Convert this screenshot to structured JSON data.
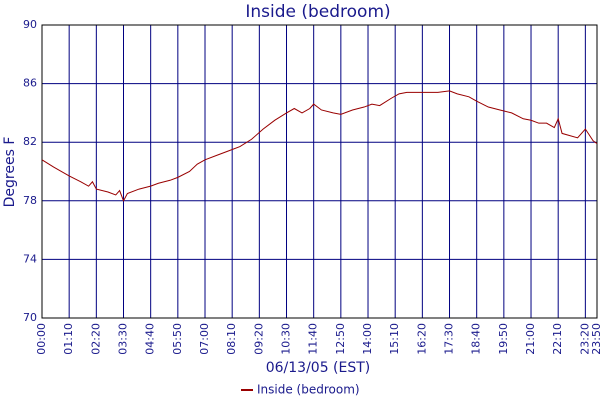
{
  "chart_data": {
    "type": "line",
    "title": "Inside (bedroom)",
    "x_label": "06/13/05 (EST)",
    "y_label": "Degrees F",
    "xlim": [
      0,
      1430
    ],
    "ylim": [
      70,
      90
    ],
    "xticks": [
      {
        "value": 0,
        "label": "00:00"
      },
      {
        "value": 70,
        "label": "01:10"
      },
      {
        "value": 140,
        "label": "02:20"
      },
      {
        "value": 210,
        "label": "03:30"
      },
      {
        "value": 280,
        "label": "04:40"
      },
      {
        "value": 350,
        "label": "05:50"
      },
      {
        "value": 420,
        "label": "07:00"
      },
      {
        "value": 490,
        "label": "08:10"
      },
      {
        "value": 560,
        "label": "09:20"
      },
      {
        "value": 630,
        "label": "10:30"
      },
      {
        "value": 700,
        "label": "11:40"
      },
      {
        "value": 770,
        "label": "12:50"
      },
      {
        "value": 840,
        "label": "14:00"
      },
      {
        "value": 910,
        "label": "15:10"
      },
      {
        "value": 980,
        "label": "16:20"
      },
      {
        "value": 1050,
        "label": "17:30"
      },
      {
        "value": 1120,
        "label": "18:40"
      },
      {
        "value": 1190,
        "label": "19:50"
      },
      {
        "value": 1260,
        "label": "21:00"
      },
      {
        "value": 1330,
        "label": "22:10"
      },
      {
        "value": 1400,
        "label": "23:20"
      },
      {
        "value": 1430,
        "label": "23:50"
      }
    ],
    "yticks": [
      70,
      74,
      78,
      82,
      86,
      90
    ],
    "grid": true,
    "x": [
      0,
      30,
      70,
      100,
      120,
      130,
      140,
      170,
      190,
      200,
      210,
      220,
      250,
      280,
      300,
      330,
      350,
      380,
      400,
      420,
      450,
      480,
      510,
      540,
      570,
      600,
      630,
      650,
      670,
      690,
      700,
      720,
      750,
      770,
      800,
      830,
      850,
      870,
      900,
      920,
      940,
      960,
      990,
      1020,
      1050,
      1070,
      1100,
      1120,
      1150,
      1180,
      1210,
      1240,
      1260,
      1280,
      1300,
      1320,
      1330,
      1340,
      1380,
      1400,
      1420,
      1430
    ],
    "series": [
      {
        "name": "Inside (bedroom)",
        "color": "#990000",
        "values": [
          80.8,
          80.3,
          79.7,
          79.3,
          79.0,
          79.3,
          78.8,
          78.6,
          78.4,
          78.7,
          78.0,
          78.5,
          78.8,
          79.0,
          79.2,
          79.4,
          79.6,
          80.0,
          80.5,
          80.8,
          81.1,
          81.4,
          81.7,
          82.2,
          82.9,
          83.5,
          84.0,
          84.3,
          84.0,
          84.3,
          84.6,
          84.2,
          84.0,
          83.9,
          84.2,
          84.4,
          84.6,
          84.5,
          85.0,
          85.3,
          85.4,
          85.4,
          85.4,
          85.4,
          85.5,
          85.3,
          85.1,
          84.8,
          84.4,
          84.2,
          84.0,
          83.6,
          83.5,
          83.3,
          83.3,
          83.0,
          83.6,
          82.6,
          82.3,
          82.9,
          82.1,
          81.9
        ]
      }
    ],
    "legend": "bottom"
  }
}
